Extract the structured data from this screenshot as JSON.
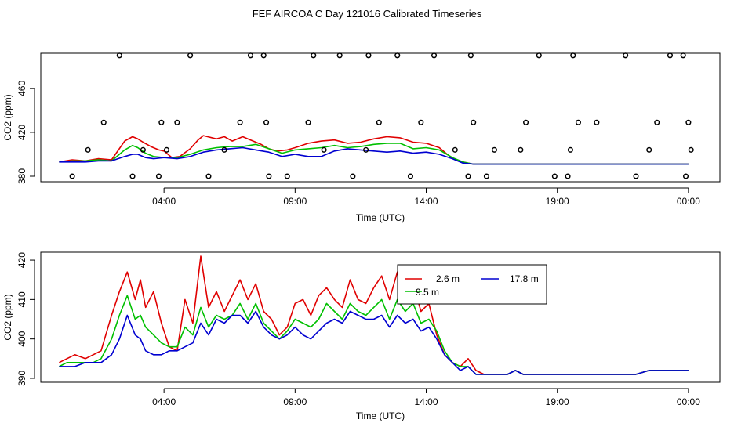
{
  "chart_data": [
    {
      "type": "scatter+line",
      "title": "FEF AIRCOA C  Day 121016  Calibrated Timeseries",
      "xlabel": "Time (UTC)",
      "ylabel": "CO2 (ppm)",
      "xlim_hours": [
        -0.7,
        25.2
      ],
      "ylim": [
        375,
        492
      ],
      "xticks": [
        {
          "h": 4,
          "label": "04:00"
        },
        {
          "h": 9,
          "label": "09:00"
        },
        {
          "h": 14,
          "label": "14:00"
        },
        {
          "h": 19,
          "label": "19:00"
        },
        {
          "h": 24,
          "label": "00:00"
        }
      ],
      "yticks": [
        380,
        420,
        460
      ],
      "series": [
        {
          "name": "2.6 m",
          "color": "#e00000",
          "x": [
            0,
            0.5,
            1,
            1.5,
            2,
            2.5,
            2.8,
            3,
            3.2,
            3.5,
            3.8,
            4,
            4.3,
            4.6,
            5,
            5.3,
            5.5,
            6,
            6.3,
            6.6,
            7,
            7.3,
            7.7,
            8,
            8.3,
            8.7,
            9,
            9.5,
            10,
            10.5,
            11,
            11.5,
            12,
            12.5,
            13,
            13.5,
            14,
            14.5,
            14.8,
            15.1,
            15.4,
            15.8,
            16.2,
            16.5,
            17,
            17.5,
            18,
            18.5,
            19,
            19.5,
            20,
            20.5,
            21,
            21.5,
            22,
            22.5,
            23,
            23.5,
            24
          ],
          "values": [
            393,
            395,
            394,
            396,
            395,
            412,
            416,
            414,
            411,
            407,
            404,
            403,
            397,
            398,
            405,
            413,
            417,
            414,
            416,
            412,
            416,
            413,
            409,
            405,
            403,
            404,
            406,
            410,
            412,
            413,
            410,
            411,
            414,
            416,
            415,
            411,
            410,
            406,
            400,
            395,
            393,
            391,
            391,
            391,
            391,
            391,
            391,
            391,
            391,
            391,
            391,
            391,
            391,
            391,
            391,
            391,
            391,
            391,
            391
          ]
        },
        {
          "name": "9.5 m",
          "color": "#00c000",
          "x": [
            0,
            0.5,
            1,
            1.5,
            2,
            2.5,
            2.8,
            3,
            3.3,
            3.6,
            4,
            4.5,
            5,
            5.5,
            6,
            6.5,
            7,
            7.5,
            8,
            8.5,
            9,
            9.5,
            10,
            10.5,
            11,
            11.5,
            12,
            12.5,
            13,
            13.5,
            14,
            14.5,
            15,
            15.4,
            15.8,
            16.2,
            17,
            18,
            19,
            20,
            21,
            22,
            23,
            24
          ],
          "values": [
            393,
            394,
            394,
            395,
            394,
            404,
            408,
            406,
            401,
            398,
            397,
            397,
            400,
            404,
            406,
            407,
            407,
            409,
            405,
            401,
            404,
            405,
            406,
            408,
            406,
            407,
            409,
            410,
            410,
            405,
            406,
            404,
            397,
            393,
            391,
            391,
            391,
            391,
            391,
            391,
            391,
            391,
            391,
            391
          ]
        },
        {
          "name": "17.8 m",
          "color": "#0000d0",
          "x": [
            0,
            0.5,
            1,
            1.5,
            2,
            2.5,
            2.8,
            3,
            3.3,
            3.6,
            4,
            4.5,
            5,
            5.5,
            6,
            6.5,
            7,
            7.5,
            8,
            8.5,
            9,
            9.5,
            10,
            10.5,
            11,
            11.5,
            12,
            12.5,
            13,
            13.5,
            14,
            14.5,
            15,
            15.4,
            15.8,
            16.2,
            17,
            18,
            19,
            20,
            21,
            22,
            23,
            24
          ],
          "values": [
            393,
            393,
            393,
            394,
            394,
            398,
            400,
            400,
            397,
            396,
            397,
            396,
            398,
            402,
            404,
            405,
            406,
            404,
            402,
            398,
            400,
            398,
            398,
            403,
            405,
            404,
            403,
            402,
            403,
            401,
            402,
            400,
            396,
            392,
            391,
            391,
            391,
            391,
            391,
            391,
            391,
            391,
            391,
            391
          ]
        },
        {
          "name": "points",
          "color": "#000000",
          "x": [
            0.5,
            1.1,
            1.7,
            2.3,
            2.8,
            3.2,
            3.8,
            3.9,
            4.1,
            4.5,
            5.0,
            5.7,
            6.3,
            6.9,
            7.3,
            7.8,
            7.9,
            8.0,
            8.7,
            9.5,
            9.7,
            10.1,
            10.7,
            11.2,
            11.7,
            11.8,
            12.2,
            12.9,
            13.4,
            13.8,
            14.3,
            15.1,
            15.6,
            15.7,
            15.8,
            16.3,
            16.6,
            17.6,
            17.8,
            18.3,
            18.9,
            19.4,
            19.5,
            19.6,
            19.8,
            20.5,
            21.6,
            22.0,
            22.5,
            22.8,
            23.3,
            23.8,
            23.9,
            24.0,
            24.1
          ],
          "values": [
            380,
            404,
            429,
            490,
            380,
            404,
            380,
            429,
            404,
            429,
            490,
            380,
            404,
            429,
            490,
            490,
            429,
            380,
            380,
            429,
            490,
            404,
            490,
            380,
            404,
            490,
            429,
            490,
            380,
            429,
            490,
            404,
            380,
            490,
            429,
            380,
            404,
            404,
            429,
            490,
            380,
            380,
            404,
            490,
            429,
            429,
            490,
            380,
            404,
            429,
            490,
            490,
            380,
            429,
            404
          ]
        }
      ]
    },
    {
      "type": "line",
      "xlabel": "Time (UTC)",
      "ylabel": "CO2 (ppm)",
      "xlim_hours": [
        -0.7,
        25.2
      ],
      "ylim": [
        389,
        422
      ],
      "xticks": [
        {
          "h": 4,
          "label": "04:00"
        },
        {
          "h": 9,
          "label": "09:00"
        },
        {
          "h": 14,
          "label": "14:00"
        },
        {
          "h": 19,
          "label": "19:00"
        },
        {
          "h": 24,
          "label": "00:00"
        }
      ],
      "yticks": [
        390,
        400,
        410,
        420
      ],
      "legend": {
        "position": "top-right",
        "entries": [
          {
            "label": "2.6 m",
            "color": "#e00000"
          },
          {
            "label": "17.8 m",
            "color": "#0000d0"
          },
          {
            "label": "9.5 m",
            "color": "#00c000"
          }
        ]
      },
      "series": [
        {
          "name": "2.6 m",
          "color": "#e00000",
          "x": [
            0,
            0.3,
            0.6,
            1,
            1.3,
            1.6,
            2,
            2.3,
            2.6,
            2.9,
            3.1,
            3.3,
            3.6,
            3.9,
            4.2,
            4.5,
            4.8,
            5.1,
            5.4,
            5.7,
            6,
            6.3,
            6.6,
            6.9,
            7.2,
            7.5,
            7.8,
            8.1,
            8.4,
            8.7,
            9,
            9.3,
            9.6,
            9.9,
            10.2,
            10.5,
            10.8,
            11.1,
            11.4,
            11.7,
            12,
            12.3,
            12.6,
            12.9,
            13.2,
            13.5,
            13.8,
            14.1,
            14.4,
            14.7,
            15,
            15.3,
            15.6,
            15.9,
            16.2,
            16.5,
            16.8,
            17.1,
            17.4,
            17.7,
            18,
            18.5,
            19,
            19.5,
            20,
            20.5,
            21,
            21.5,
            22,
            22.5,
            23,
            23.5,
            24
          ],
          "values": [
            394,
            395,
            396,
            395,
            396,
            397,
            406,
            412,
            417,
            410,
            415,
            408,
            412,
            404,
            398,
            397,
            410,
            404,
            421,
            408,
            412,
            407,
            411,
            415,
            410,
            414,
            407,
            405,
            401,
            403,
            409,
            410,
            406,
            411,
            413,
            410,
            408,
            415,
            410,
            409,
            413,
            416,
            410,
            417,
            412,
            414,
            407,
            409,
            401,
            396,
            394,
            393,
            395,
            392,
            391,
            391,
            391,
            391,
            392,
            391,
            391,
            391,
            391,
            391,
            391,
            391,
            391,
            391,
            391,
            392,
            392,
            392,
            392
          ]
        },
        {
          "name": "9.5 m",
          "color": "#00c000",
          "x": [
            0,
            0.3,
            0.6,
            1,
            1.3,
            1.6,
            2,
            2.3,
            2.6,
            2.9,
            3.1,
            3.3,
            3.6,
            3.9,
            4.2,
            4.5,
            4.8,
            5.1,
            5.4,
            5.7,
            6,
            6.3,
            6.6,
            6.9,
            7.2,
            7.5,
            7.8,
            8.1,
            8.4,
            8.7,
            9,
            9.3,
            9.6,
            9.9,
            10.2,
            10.5,
            10.8,
            11.1,
            11.4,
            11.7,
            12,
            12.3,
            12.6,
            12.9,
            13.2,
            13.5,
            13.8,
            14.1,
            14.4,
            14.7,
            15,
            15.3,
            15.6,
            15.9,
            16.2,
            16.5,
            16.8,
            17.1,
            17.4,
            17.7,
            18,
            18.5,
            19,
            19.5,
            20,
            20.5,
            21,
            21.5,
            22,
            22.5,
            23,
            23.5,
            24
          ],
          "values": [
            393,
            394,
            394,
            394,
            394,
            395,
            400,
            406,
            411,
            405,
            406,
            403,
            401,
            399,
            398,
            398,
            403,
            401,
            408,
            403,
            406,
            405,
            406,
            409,
            405,
            409,
            404,
            402,
            400,
            402,
            405,
            404,
            403,
            405,
            409,
            407,
            405,
            409,
            407,
            406,
            408,
            410,
            405,
            410,
            407,
            409,
            404,
            405,
            402,
            397,
            394,
            393,
            393,
            391,
            391,
            391,
            391,
            391,
            392,
            391,
            391,
            391,
            391,
            391,
            391,
            391,
            391,
            391,
            391,
            392,
            392,
            392,
            392
          ]
        },
        {
          "name": "17.8 m",
          "color": "#0000d0",
          "x": [
            0,
            0.3,
            0.6,
            1,
            1.3,
            1.6,
            2,
            2.3,
            2.6,
            2.9,
            3.1,
            3.3,
            3.6,
            3.9,
            4.2,
            4.5,
            4.8,
            5.1,
            5.4,
            5.7,
            6,
            6.3,
            6.6,
            6.9,
            7.2,
            7.5,
            7.8,
            8.1,
            8.4,
            8.7,
            9,
            9.3,
            9.6,
            9.9,
            10.2,
            10.5,
            10.8,
            11.1,
            11.4,
            11.7,
            12,
            12.3,
            12.6,
            12.9,
            13.2,
            13.5,
            13.8,
            14.1,
            14.4,
            14.7,
            15,
            15.3,
            15.6,
            15.9,
            16.2,
            16.5,
            16.8,
            17.1,
            17.4,
            17.7,
            18,
            18.5,
            19,
            19.5,
            20,
            20.5,
            21,
            21.5,
            22,
            22.5,
            23,
            23.5,
            24
          ],
          "values": [
            393,
            393,
            393,
            394,
            394,
            394,
            396,
            400,
            406,
            401,
            400,
            397,
            396,
            396,
            397,
            397,
            398,
            399,
            404,
            401,
            405,
            404,
            406,
            406,
            404,
            407,
            403,
            401,
            400,
            401,
            403,
            401,
            400,
            402,
            404,
            405,
            404,
            407,
            406,
            405,
            405,
            406,
            403,
            406,
            404,
            405,
            402,
            403,
            400,
            396,
            394,
            392,
            393,
            391,
            391,
            391,
            391,
            391,
            392,
            391,
            391,
            391,
            391,
            391,
            391,
            391,
            391,
            391,
            391,
            392,
            392,
            392,
            392
          ]
        }
      ]
    }
  ]
}
